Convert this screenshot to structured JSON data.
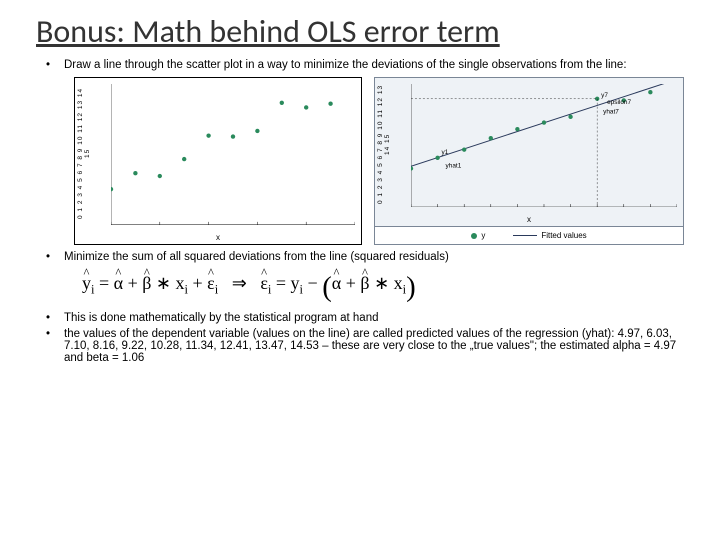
{
  "title": "Bonus: Math behind OLS error term",
  "bullet1": "Draw a line through the scatter plot in a way to minimize the deviations of the single observations from the line:",
  "bullet2": "Minimize the sum of all squared deviations from the line (squared residuals)",
  "bullet3": "This is done mathematically by the statistical program at hand",
  "bullet4": "the values of the dependent variable (values on the line) are called predicted values of the regression (yhat): 4.97, 6.03, 7.10, 8.16, 9.22, 10.28, 11.34, 12.41, 13.47, 14.53 – these are very close to the „true values\"; the estimated alpha = 4.97 and beta = 1.06",
  "scatter_left": {
    "type": "scatter",
    "xlim": [
      0,
      10
    ],
    "ylim": [
      0,
      15
    ],
    "xticks": [
      0,
      2,
      4,
      6,
      8,
      10
    ],
    "yticks_label": "0 1 2 3 4 5 6 7 8 9 10 11 12 13 14 15",
    "xlabel": "x",
    "ylabel": "y",
    "points": [
      [
        0,
        3.8
      ],
      [
        1,
        5.5
      ],
      [
        2,
        5.2
      ],
      [
        3,
        7.0
      ],
      [
        4,
        9.5
      ],
      [
        5,
        9.4
      ],
      [
        6,
        10.0
      ],
      [
        7,
        13.0
      ],
      [
        8,
        12.5
      ],
      [
        9,
        12.9
      ]
    ],
    "point_color": "#2a8a5c",
    "bg": "#ffffff",
    "gridline_color": "#000000"
  },
  "scatter_right": {
    "type": "scatter-with-fit",
    "xlim": [
      0,
      10
    ],
    "ylim": [
      0,
      15
    ],
    "xticks": [
      0,
      1,
      2,
      3,
      4,
      5,
      6,
      7,
      8,
      9,
      10
    ],
    "yticks_label": "0 1 2 3 4 5 6 7 8 9 10 11 12 13 14 15",
    "xlabel": "x",
    "ylabel": "",
    "points": [
      [
        0,
        4.7
      ],
      [
        1,
        6.0
      ],
      [
        2,
        7.0
      ],
      [
        3,
        8.4
      ],
      [
        4,
        9.5
      ],
      [
        5,
        10.3
      ],
      [
        6,
        11.0
      ],
      [
        7,
        13.2
      ],
      [
        8,
        13.0
      ],
      [
        9,
        14.0
      ]
    ],
    "fit_intercept": 4.97,
    "fit_slope": 1.06,
    "point_color": "#2a8a5c",
    "line_color": "#2a3a5c",
    "bg": "#eef2f6",
    "annotations": {
      "alpha": "alpha",
      "yhat1": "yhat1",
      "y1": "y1",
      "y7": "y7",
      "yhat7": "yhat7",
      "epsilon7": "epsilon7"
    },
    "legend": {
      "point": "y",
      "line": "Fitted values"
    }
  },
  "equation_tex": "ŷᵢ = α̂ + β̂ * xᵢ + ε̂ᵢ  ⇒  ε̂ᵢ = yᵢ − (α̂ + β̂ * xᵢ)",
  "colors": {
    "text": "#000000",
    "title": "#333333"
  }
}
